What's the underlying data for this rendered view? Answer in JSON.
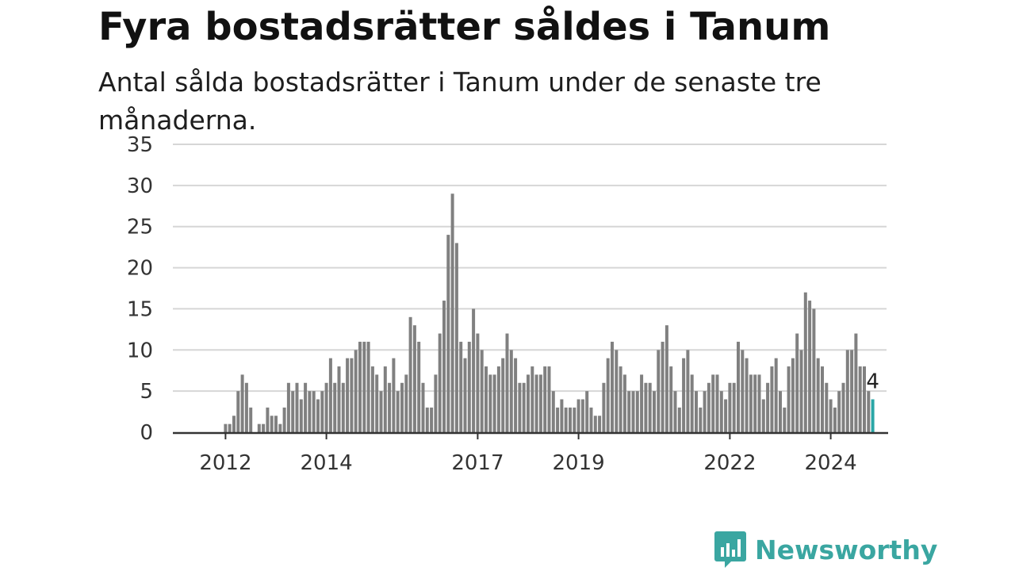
{
  "title": "Fyra bostadsrätter såldes i Tanum",
  "subtitle": "Antal sålda bostadsrätter i Tanum under de senaste tre månaderna.",
  "brand": {
    "name": "Newsworthy",
    "color": "#3aa6a1"
  },
  "chart_data": {
    "type": "bar",
    "ylim": [
      0,
      35
    ],
    "yticks": [
      0,
      5,
      10,
      15,
      20,
      25,
      30,
      35
    ],
    "grid": true,
    "legend": "none",
    "start": "2011-01",
    "bar_color": "#808080",
    "highlight_color": "#2aa6a6",
    "x_tick_labels": [
      {
        "label": "2012",
        "month": "2012-01"
      },
      {
        "label": "2014",
        "month": "2014-01"
      },
      {
        "label": "2017",
        "month": "2017-01"
      },
      {
        "label": "2019",
        "month": "2019-01"
      },
      {
        "label": "2022",
        "month": "2022-01"
      },
      {
        "label": "2024",
        "month": "2024-01"
      }
    ],
    "values": [
      0,
      0,
      0,
      0,
      0,
      0,
      0,
      0,
      0,
      0,
      0,
      0,
      1,
      1,
      2,
      5,
      7,
      6,
      3,
      0,
      1,
      1,
      3,
      2,
      2,
      1,
      3,
      6,
      5,
      6,
      4,
      6,
      5,
      5,
      4,
      5,
      6,
      9,
      6,
      8,
      6,
      9,
      9,
      10,
      11,
      11,
      11,
      8,
      7,
      5,
      8,
      6,
      9,
      5,
      6,
      7,
      14,
      13,
      11,
      6,
      3,
      3,
      7,
      12,
      16,
      24,
      29,
      23,
      11,
      9,
      11,
      15,
      12,
      10,
      8,
      7,
      7,
      8,
      9,
      12,
      10,
      9,
      6,
      6,
      7,
      8,
      7,
      7,
      8,
      8,
      5,
      3,
      4,
      3,
      3,
      3,
      4,
      4,
      5,
      3,
      2,
      2,
      6,
      9,
      11,
      10,
      8,
      7,
      5,
      5,
      5,
      7,
      6,
      6,
      5,
      10,
      11,
      13,
      8,
      5,
      3,
      9,
      10,
      7,
      5,
      3,
      5,
      6,
      7,
      7,
      5,
      4,
      6,
      6,
      11,
      10,
      9,
      7,
      7,
      7,
      4,
      6,
      8,
      9,
      5,
      3,
      8,
      9,
      12,
      10,
      17,
      16,
      15,
      9,
      8,
      6,
      4,
      3,
      5,
      6,
      10,
      10,
      12,
      8,
      8,
      5,
      4
    ],
    "last_value_label": "4"
  }
}
